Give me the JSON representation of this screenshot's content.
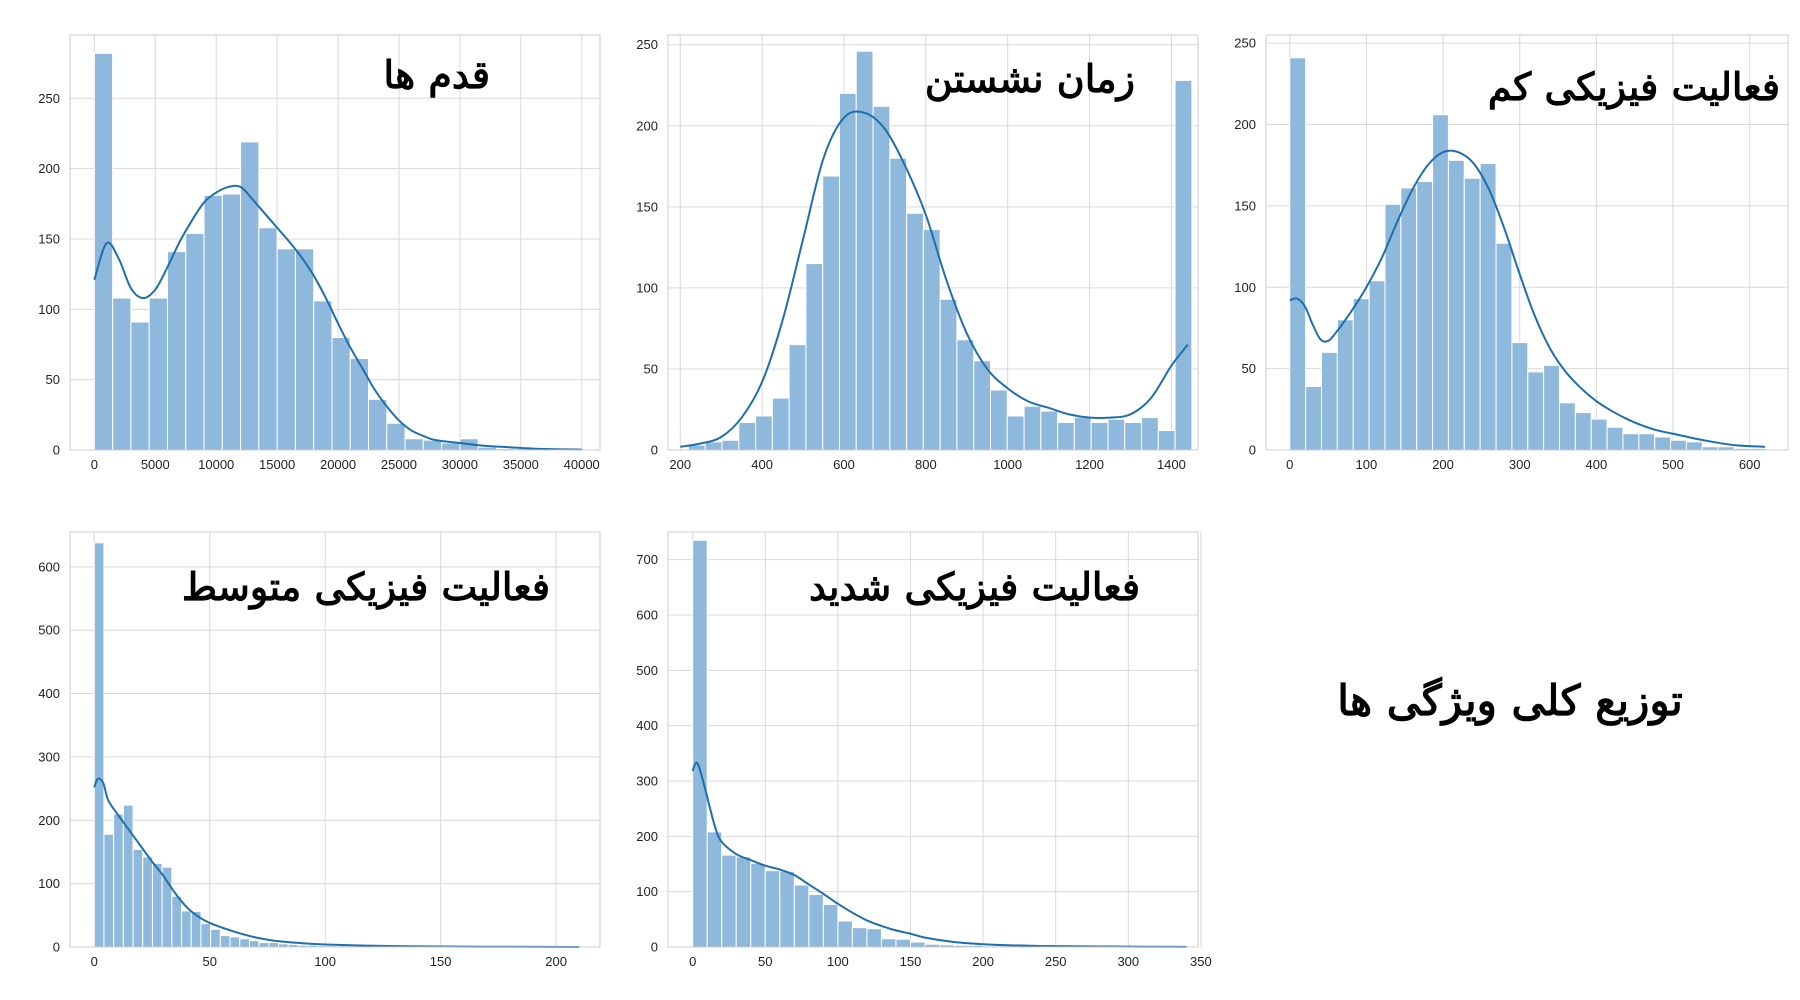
{
  "figure": {
    "main_title": "توزیع کلی ویژگی ها"
  },
  "chart_data": [
    {
      "type": "bar",
      "title": "قدم ها",
      "xlabel": "",
      "ylabel": "",
      "xlim": [
        -2000,
        41500
      ],
      "ylim": [
        0,
        295
      ],
      "xticks": [
        0,
        5000,
        10000,
        15000,
        20000,
        25000,
        30000,
        35000,
        40000
      ],
      "xtick_labels": [
        "0",
        "5000",
        "10000",
        "15000",
        "20000",
        "25000",
        "30000",
        "35000",
        "40000"
      ],
      "yticks": [
        0,
        50,
        100,
        150,
        200,
        250
      ],
      "ytick_labels": [
        "0",
        "50",
        "100",
        "150",
        "200",
        "250"
      ],
      "bin_width": 1500,
      "bin_start": 0,
      "values": [
        282,
        108,
        91,
        108,
        141,
        154,
        181,
        182,
        219,
        158,
        143,
        143,
        106,
        80,
        65,
        36,
        19,
        8,
        7,
        5,
        8,
        2,
        1,
        1,
        1,
        0,
        0
      ],
      "kde": {
        "x": [
          0,
          1000,
          2000,
          3000,
          4000,
          5000,
          6000,
          7000,
          8000,
          9000,
          10000,
          11000,
          12000,
          13000,
          14000,
          15000,
          16000,
          17000,
          18000,
          19000,
          20000,
          21000,
          22000,
          23000,
          24000,
          25000,
          26000,
          27000,
          28000,
          30000,
          32000,
          34000,
          36000,
          38000,
          40000
        ],
        "y": [
          121,
          147,
          136,
          115,
          108,
          114,
          130,
          148,
          163,
          176,
          183,
          187,
          187,
          178,
          168,
          158,
          148,
          137,
          124,
          108,
          90,
          73,
          58,
          43,
          31,
          21,
          14,
          10,
          7,
          5,
          3,
          2,
          1,
          0.5,
          0.3
        ]
      }
    },
    {
      "type": "bar",
      "title": "زمان نشستن",
      "xlabel": "",
      "ylabel": "",
      "xlim": [
        170,
        1465
      ],
      "ylim": [
        0,
        256
      ],
      "xticks": [
        200,
        400,
        600,
        800,
        1000,
        1200,
        1400
      ],
      "xtick_labels": [
        "200",
        "400",
        "600",
        "800",
        "1000",
        "1200",
        "1400"
      ],
      "yticks": [
        0,
        50,
        100,
        150,
        200,
        250
      ],
      "ytick_labels": [
        "0",
        "50",
        "100",
        "150",
        "200",
        "250"
      ],
      "bin_width": 41,
      "bin_start": 220,
      "values": [
        3,
        5,
        6,
        17,
        21,
        32,
        65,
        115,
        169,
        220,
        246,
        212,
        180,
        146,
        136,
        93,
        68,
        55,
        37,
        21,
        27,
        24,
        17,
        20,
        17,
        19,
        17,
        20,
        12,
        228
      ],
      "kde": {
        "x": [
          200,
          250,
          300,
          350,
          400,
          450,
          500,
          550,
          600,
          650,
          700,
          750,
          800,
          850,
          900,
          950,
          1000,
          1050,
          1100,
          1150,
          1200,
          1250,
          1300,
          1350,
          1400,
          1440
        ],
        "y": [
          2,
          4,
          8,
          20,
          42,
          80,
          130,
          180,
          205,
          208,
          198,
          175,
          145,
          105,
          72,
          50,
          38,
          30,
          26,
          22,
          20,
          20,
          22,
          32,
          52,
          65
        ]
      }
    },
    {
      "type": "bar",
      "title": "فعالیت فیزیکی کم",
      "xlabel": "",
      "ylabel": "",
      "xlim": [
        -31,
        650
      ],
      "ylim": [
        0,
        255
      ],
      "xticks": [
        0,
        100,
        200,
        300,
        400,
        500,
        600
      ],
      "xtick_labels": [
        "0",
        "100",
        "200",
        "300",
        "400",
        "500",
        "600"
      ],
      "yticks": [
        0,
        50,
        100,
        150,
        200,
        250
      ],
      "ytick_labels": [
        "0",
        "50",
        "100",
        "150",
        "200",
        "250"
      ],
      "bin_width": 20.7,
      "bin_start": 0,
      "values": [
        241,
        39,
        60,
        80,
        93,
        104,
        151,
        161,
        165,
        206,
        178,
        167,
        176,
        127,
        66,
        48,
        52,
        29,
        23,
        19,
        14,
        10,
        10,
        8,
        6,
        5,
        2,
        2,
        1,
        1
      ],
      "kde": {
        "x": [
          0,
          10,
          20,
          30,
          40,
          50,
          60,
          80,
          100,
          120,
          140,
          160,
          180,
          200,
          220,
          240,
          260,
          280,
          300,
          320,
          340,
          360,
          380,
          400,
          420,
          440,
          460,
          480,
          500,
          540,
          580,
          620
        ],
        "y": [
          92,
          93,
          88,
          77,
          68,
          67,
          72,
          85,
          100,
          118,
          140,
          160,
          175,
          183,
          183,
          176,
          160,
          136,
          108,
          82,
          62,
          48,
          38,
          30,
          24,
          19,
          15,
          12,
          10,
          6,
          3,
          2
        ]
      }
    },
    {
      "type": "bar",
      "title": "فعالیت فیزیکی متوسط",
      "xlabel": "",
      "ylabel": "",
      "xlim": [
        -10.5,
        219
      ],
      "ylim": [
        0,
        655
      ],
      "xticks": [
        0,
        50,
        100,
        150,
        200
      ],
      "xtick_labels": [
        "0",
        "50",
        "100",
        "150",
        "200"
      ],
      "yticks": [
        0,
        100,
        200,
        300,
        400,
        500,
        600
      ],
      "ytick_labels": [
        "0",
        "100",
        "200",
        "300",
        "400",
        "500",
        "600"
      ],
      "bin_width": 4.2,
      "bin_start": 0,
      "values": [
        638,
        178,
        210,
        224,
        154,
        142,
        132,
        126,
        80,
        57,
        56,
        37,
        28,
        18,
        16,
        13,
        10,
        7,
        7,
        5,
        4,
        3,
        3,
        2,
        2,
        2,
        1,
        1,
        1,
        1,
        1,
        1,
        1,
        1,
        1,
        1,
        1,
        1,
        0,
        0,
        0,
        0,
        0,
        0,
        0,
        0,
        0,
        0,
        0,
        0
      ],
      "kde": {
        "x": [
          0,
          1,
          2,
          4,
          6,
          10,
          15,
          20,
          25,
          30,
          35,
          40,
          45,
          50,
          60,
          70,
          80,
          90,
          100,
          120,
          140,
          160,
          180,
          210
        ],
        "y": [
          252,
          262,
          266,
          258,
          232,
          210,
          185,
          160,
          135,
          112,
          85,
          63,
          48,
          38,
          25,
          15,
          9,
          6,
          4,
          2,
          1,
          0.5,
          0.3,
          0.1
        ]
      }
    },
    {
      "type": "bar",
      "title": "فعالیت فیزیکی شدید",
      "xlabel": "",
      "ylabel": "",
      "xlim": [
        -17,
        348
      ],
      "ylim": [
        0,
        750
      ],
      "xticks": [
        0,
        50,
        100,
        150,
        200,
        250,
        300,
        350
      ],
      "xtick_labels": [
        "0",
        "50",
        "100",
        "150",
        "200",
        "250",
        "300",
        "350"
      ],
      "yticks": [
        0,
        100,
        200,
        300,
        400,
        500,
        600,
        700
      ],
      "ytick_labels": [
        "0",
        "100",
        "200",
        "300",
        "400",
        "500",
        "600",
        "700"
      ],
      "bin_width": 10,
      "bin_start": 0,
      "values": [
        735,
        208,
        166,
        163,
        151,
        138,
        137,
        112,
        95,
        77,
        47,
        35,
        33,
        15,
        14,
        9,
        5,
        4,
        3,
        3,
        2,
        2,
        1,
        1,
        1,
        1,
        1,
        0,
        0,
        0,
        0,
        0,
        0,
        1
      ],
      "kde": {
        "x": [
          0,
          2,
          4,
          8,
          12,
          16,
          20,
          30,
          40,
          50,
          60,
          70,
          80,
          90,
          100,
          110,
          120,
          130,
          140,
          150,
          160,
          180,
          200,
          220,
          250,
          280,
          310,
          340
        ],
        "y": [
          318,
          332,
          328,
          292,
          250,
          212,
          190,
          168,
          157,
          147,
          140,
          130,
          113,
          96,
          78,
          62,
          48,
          38,
          30,
          24,
          17,
          9,
          5,
          3,
          1.5,
          1,
          0.5,
          0.3
        ]
      }
    }
  ]
}
